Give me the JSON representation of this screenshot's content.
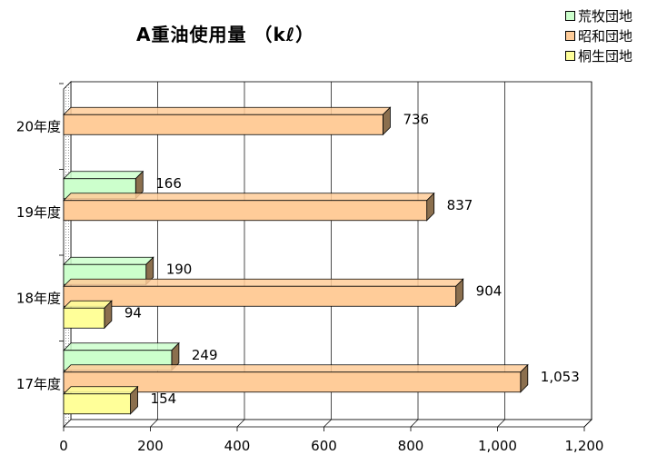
{
  "chart_data": {
    "type": "bar",
    "orientation": "horizontal",
    "title": "A重油使用量 （kℓ）",
    "categories": [
      "17年度",
      "18年度",
      "19年度",
      "20年度"
    ],
    "series": [
      {
        "name": "荒牧団地",
        "color": "#CCFFCC",
        "values": [
          249,
          190,
          166,
          null
        ]
      },
      {
        "name": "昭和団地",
        "color": "#FFCC99",
        "values": [
          1053,
          904,
          837,
          736
        ]
      },
      {
        "name": "桐生団地",
        "color": "#FFFF99",
        "values": [
          154,
          94,
          null,
          null
        ]
      }
    ],
    "value_labels": {
      "荒牧団地": [
        "249",
        "190",
        "166",
        ""
      ],
      "昭和団地": [
        "1,053",
        "904",
        "837",
        "736"
      ],
      "桐生団地": [
        "154",
        "94",
        "",
        ""
      ]
    },
    "xticks": [
      "0",
      "200",
      "400",
      "600",
      "800",
      "1,000",
      "1,200"
    ],
    "xlim": [
      0,
      1200
    ],
    "grid": true,
    "legend_position": "top-right",
    "style": "3d"
  }
}
